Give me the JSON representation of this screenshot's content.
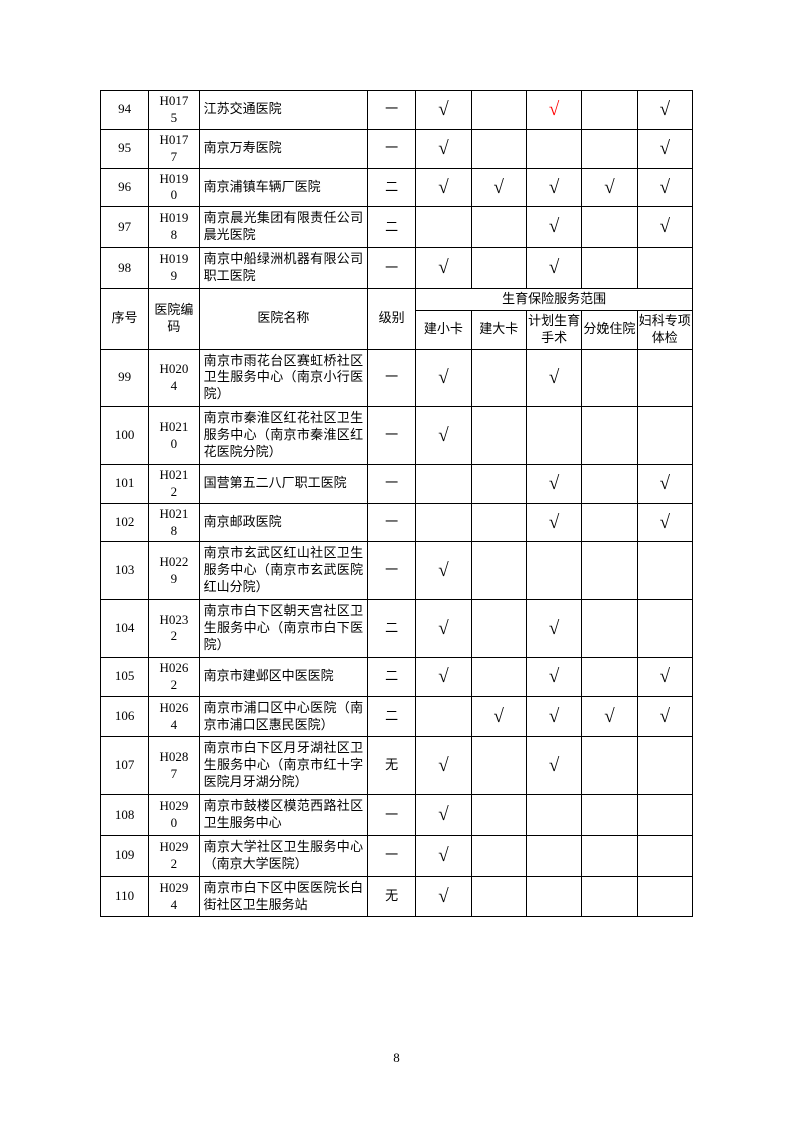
{
  "page_number": "8",
  "check_mark": "√",
  "colors": {
    "red": "#ff0000",
    "black": "#000000",
    "bg": "#ffffff"
  },
  "headers": {
    "seq": "序号",
    "code": "医院编码",
    "name": "医院名称",
    "level": "级别",
    "scope": "生育保险服务范围",
    "sub": [
      "建小卡",
      "建大卡",
      "计划生育手术",
      "分娩住院",
      "妇科专项体检"
    ]
  },
  "rows_top": [
    {
      "seq": "94",
      "code": "H0175",
      "name": "江苏交通医院",
      "level": "一",
      "c": [
        true,
        false,
        "red",
        false,
        true
      ]
    },
    {
      "seq": "95",
      "code": "H0177",
      "name": "南京万寿医院",
      "level": "一",
      "c": [
        true,
        false,
        false,
        false,
        true
      ]
    },
    {
      "seq": "96",
      "code": "H0190",
      "name": "南京浦镇车辆厂医院",
      "level": "二",
      "c": [
        true,
        true,
        true,
        true,
        true
      ]
    },
    {
      "seq": "97",
      "code": "H0198",
      "name": "南京晨光集团有限责任公司晨光医院",
      "level": "二",
      "c": [
        false,
        false,
        true,
        false,
        true
      ]
    },
    {
      "seq": "98",
      "code": "H0199",
      "name": "南京中船绿洲机器有限公司职工医院",
      "level": "一",
      "c": [
        true,
        false,
        true,
        false,
        false
      ]
    }
  ],
  "rows_bottom": [
    {
      "seq": "99",
      "code": "H0204",
      "name": "南京市雨花台区赛虹桥社区卫生服务中心（南京小行医院）",
      "level": "一",
      "c": [
        true,
        false,
        true,
        false,
        false
      ]
    },
    {
      "seq": "100",
      "code": "H0210",
      "name": "南京市秦淮区红花社区卫生服务中心（南京市秦淮区红花医院分院）",
      "level": "一",
      "c": [
        true,
        false,
        false,
        false,
        false
      ]
    },
    {
      "seq": "101",
      "code": "H0212",
      "name": "国营第五二八厂职工医院",
      "level": "一",
      "c": [
        false,
        false,
        true,
        false,
        true
      ]
    },
    {
      "seq": "102",
      "code": "H0218",
      "name": "南京邮政医院",
      "level": "一",
      "c": [
        false,
        false,
        true,
        false,
        true
      ]
    },
    {
      "seq": "103",
      "code": "H0229",
      "name": "南京市玄武区红山社区卫生服务中心（南京市玄武医院红山分院）",
      "level": "一",
      "c": [
        true,
        false,
        false,
        false,
        false
      ]
    },
    {
      "seq": "104",
      "code": "H0232",
      "name": "南京市白下区朝天宫社区卫生服务中心（南京市白下医院）",
      "level": "二",
      "c": [
        true,
        false,
        true,
        false,
        false
      ]
    },
    {
      "seq": "105",
      "code": "H0262",
      "name": "南京市建邺区中医医院",
      "level": "二",
      "c": [
        true,
        false,
        true,
        false,
        true
      ]
    },
    {
      "seq": "106",
      "code": "H0264",
      "name": "南京市浦口区中心医院（南京市浦口区惠民医院）",
      "level": "二",
      "c": [
        false,
        true,
        true,
        true,
        true
      ]
    },
    {
      "seq": "107",
      "code": "H0287",
      "name": "南京市白下区月牙湖社区卫生服务中心（南京市红十字医院月牙湖分院）",
      "level": "无",
      "c": [
        true,
        false,
        true,
        false,
        false
      ]
    },
    {
      "seq": "108",
      "code": "H0290",
      "name": "南京市鼓楼区模范西路社区卫生服务中心",
      "level": "一",
      "c": [
        true,
        false,
        false,
        false,
        false
      ]
    },
    {
      "seq": "109",
      "code": "H0292",
      "name": "南京大学社区卫生服务中心（南京大学医院）",
      "level": "一",
      "c": [
        true,
        false,
        false,
        false,
        false
      ]
    },
    {
      "seq": "110",
      "code": "H0294",
      "name": "南京市白下区中医医院长白街社区卫生服务站",
      "level": "无",
      "c": [
        true,
        false,
        false,
        false,
        false
      ]
    }
  ]
}
